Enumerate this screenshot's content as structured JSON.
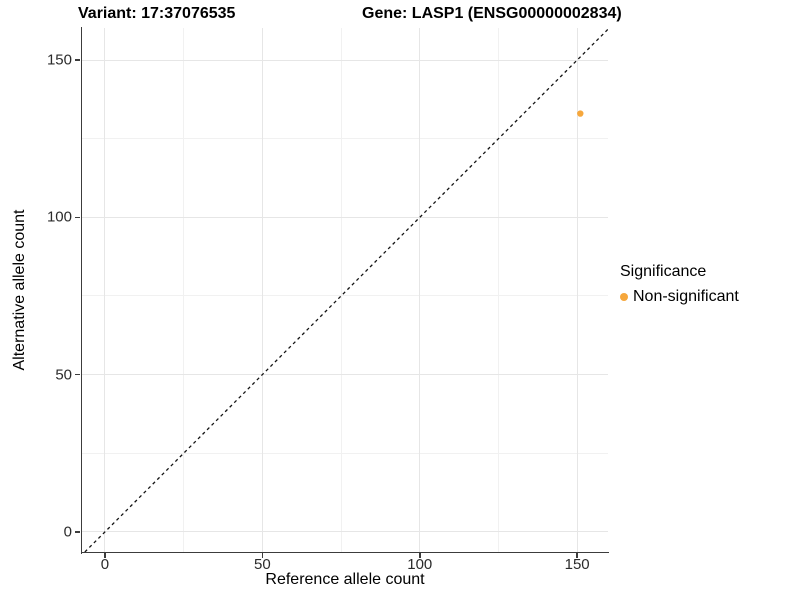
{
  "chart_data": {
    "type": "scatter",
    "titles": {
      "variant": "Variant: 17:37076535",
      "gene": "Gene: LASP1 (ENSG00000002834)"
    },
    "xlabel": "Reference allele count",
    "ylabel": "Alternative allele count",
    "x_major_ticks": [
      0,
      50,
      100,
      150
    ],
    "y_major_ticks": [
      0,
      50,
      100,
      150
    ],
    "x_minor_ticks": [
      25,
      75,
      125
    ],
    "y_minor_ticks": [
      25,
      75,
      125
    ],
    "xlim": [
      -7.3,
      159.8
    ],
    "ylim": [
      -6.4,
      160.2
    ],
    "grid": "major and minor gridlines on white background",
    "identity_line": {
      "equation": "y = x",
      "style": "dashed",
      "x1": -6.4,
      "y1": -6.4,
      "x2": 159.8,
      "y2": 159.8,
      "color": "#141414"
    },
    "series": [
      {
        "name": "Non-significant",
        "color": "#F6A73C",
        "points": [
          {
            "x": 151,
            "y": 133
          }
        ]
      }
    ],
    "legend": {
      "title": "Significance",
      "position": "right",
      "items": [
        {
          "label": "Non-significant",
          "color": "#F6A73C"
        }
      ]
    }
  },
  "colors": {
    "background": "#FFFFFF",
    "axis_line": "#3C3C3C",
    "grid_major": "#E6E6E6",
    "grid_minor": "#F1F1F1",
    "tick_label": "#2B2B2B",
    "title_text": "#000000",
    "point_orange": "#F6A73C"
  }
}
